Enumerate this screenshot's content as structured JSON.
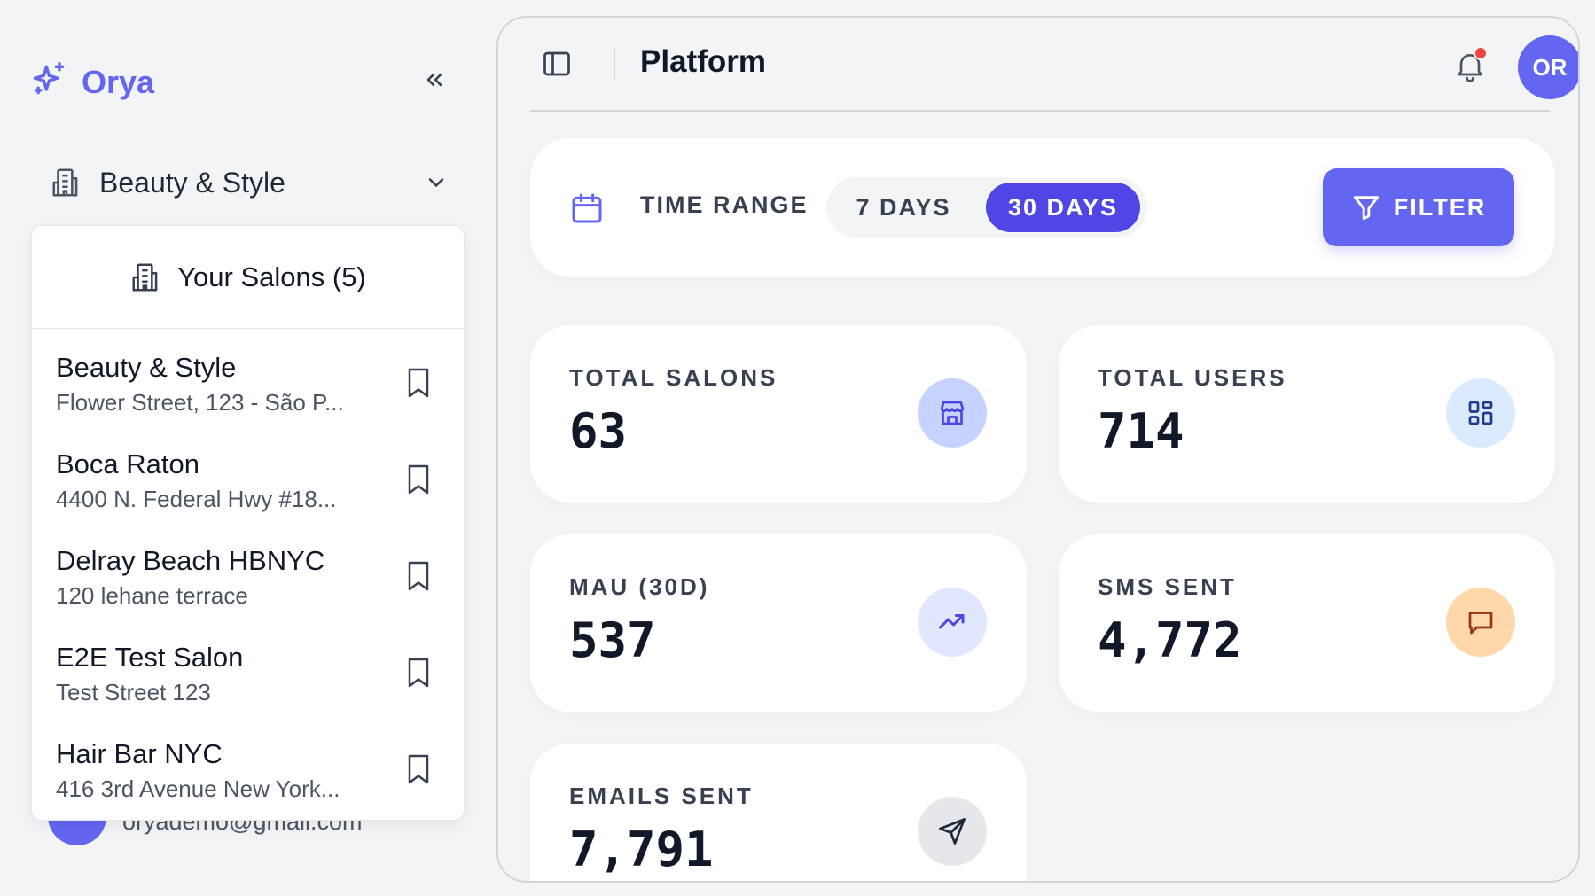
{
  "brand": {
    "name": "Orya",
    "icon": "sparkles-icon",
    "accent": "#6366f1"
  },
  "sidebar": {
    "collapse_icon": "chevrons-left-icon",
    "current_salon": "Beauty & Style",
    "dropdown": {
      "header": "Your Salons (5)",
      "items": [
        {
          "name": "Beauty & Style",
          "address": "Flower Street, 123 - São P..."
        },
        {
          "name": "Boca Raton",
          "address": "4400 N. Federal Hwy #18..."
        },
        {
          "name": "Delray Beach HBNYC",
          "address": "120 lehane terrace"
        },
        {
          "name": "E2E Test Salon",
          "address": "Test Street 123"
        },
        {
          "name": "Hair Bar NYC",
          "address": "416 3rd Avenue New York..."
        }
      ]
    },
    "user_email": "oryademo@gmail.com"
  },
  "header": {
    "title": "Platform",
    "avatar_initials": "OR",
    "notification_dot_color": "#ef4444"
  },
  "time_range": {
    "label": "TIME RANGE",
    "options": [
      "7 DAYS",
      "30 DAYS"
    ],
    "selected": "30 DAYS",
    "filter_label": "FILTER"
  },
  "stats": [
    {
      "label": "TOTAL SALONS",
      "value": "63",
      "icon": "store-icon",
      "icon_bg": "#c7d2fe",
      "icon_color": "#4f46e5"
    },
    {
      "label": "TOTAL USERS",
      "value": "714",
      "icon": "grid-icon",
      "icon_bg": "#dbeafe",
      "icon_color": "#1e3a8a"
    },
    {
      "label": "MAU (30D)",
      "value": "537",
      "icon": "trending-up-icon",
      "icon_bg": "#e0e7ff",
      "icon_color": "#4f46e5"
    },
    {
      "label": "SMS SENT",
      "value": "4,772",
      "icon": "message-square-icon",
      "icon_bg": "#fed7aa",
      "icon_color": "#9a3412"
    },
    {
      "label": "EMAILS SENT",
      "value": "7,791",
      "icon": "send-icon",
      "icon_bg": "#e5e7eb",
      "icon_color": "#1f2937"
    }
  ]
}
